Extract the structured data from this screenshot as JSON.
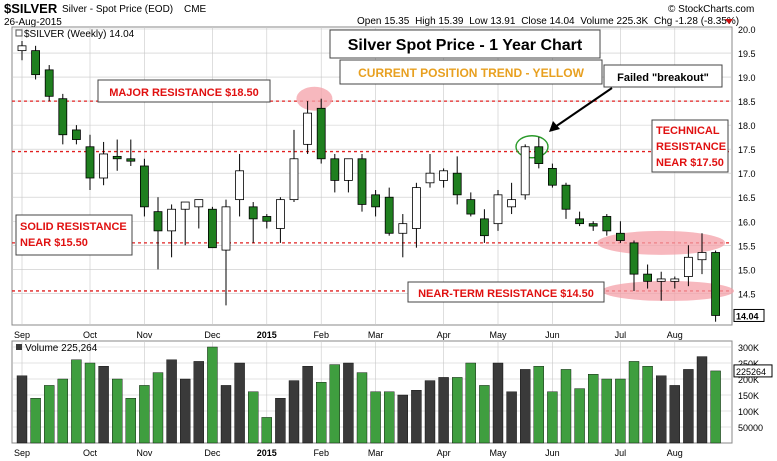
{
  "header": {
    "symbol": "$SILVER",
    "name": "Silver - Spot Price (EOD)",
    "exchange": "CME",
    "date": "26-Aug-2015",
    "copyright": "© StockCharts.com",
    "open_label": "Open",
    "open": "15.35",
    "high_label": "High",
    "high": "15.39",
    "low_label": "Low",
    "low": "13.91",
    "close_label": "Close",
    "close": "14.04",
    "volume_label": "Volume",
    "volume": "225.3K",
    "chg_label": "Chg",
    "chg": "-1.28 (-8.35%)"
  },
  "colors": {
    "up": "#ffffff",
    "down": "#1f7f1f",
    "up_volume": "#3a3a3a",
    "down_volume": "#3f9e3f",
    "resistance_line": "#e02020",
    "annotation_text": "#e01010",
    "highlight": "#f4a0a8",
    "yellow_title": "#e8a020",
    "grid": "#c8c8c8"
  },
  "chart_data": {
    "type": "candlestick",
    "series_label": "$SILVER (Weekly) 14.04",
    "title": "Silver Spot Price - 1 Year Chart",
    "subtitle": "CURRENT POSITION TREND - YELLOW",
    "price_axis": {
      "range": [
        13.8,
        20.0
      ],
      "ticks": [
        "20.0",
        "19.5",
        "19.0",
        "18.5",
        "18.0",
        "17.5",
        "17.0",
        "16.5",
        "16.0",
        "15.5",
        "15.0",
        "14.5"
      ],
      "last_value_label": "14.04"
    },
    "x_axis": {
      "labels": [
        {
          "label": "Sep",
          "week": 0
        },
        {
          "label": "Oct",
          "week": 5
        },
        {
          "label": "Nov",
          "week": 9
        },
        {
          "label": "Dec",
          "week": 14
        },
        {
          "label": "2015",
          "week": 18
        },
        {
          "label": "Feb",
          "week": 22
        },
        {
          "label": "Mar",
          "week": 26
        },
        {
          "label": "Apr",
          "week": 31
        },
        {
          "label": "May",
          "week": 35
        },
        {
          "label": "Jun",
          "week": 39
        },
        {
          "label": "Jul",
          "week": 44
        },
        {
          "label": "Aug",
          "week": 48
        }
      ]
    },
    "candles": [
      {
        "o": 19.55,
        "h": 19.75,
        "l": 19.35,
        "c": 19.65
      },
      {
        "o": 19.55,
        "h": 19.65,
        "l": 18.95,
        "c": 19.05
      },
      {
        "o": 19.15,
        "h": 19.25,
        "l": 18.5,
        "c": 18.6
      },
      {
        "o": 18.55,
        "h": 18.65,
        "l": 17.6,
        "c": 17.8
      },
      {
        "o": 17.9,
        "h": 18.0,
        "l": 17.6,
        "c": 17.7
      },
      {
        "o": 17.55,
        "h": 17.8,
        "l": 16.65,
        "c": 16.9
      },
      {
        "o": 16.9,
        "h": 17.65,
        "l": 16.75,
        "c": 17.4
      },
      {
        "o": 17.35,
        "h": 17.7,
        "l": 17.05,
        "c": 17.3
      },
      {
        "o": 17.3,
        "h": 17.7,
        "l": 17.15,
        "c": 17.25
      },
      {
        "o": 17.15,
        "h": 17.3,
        "l": 16.1,
        "c": 16.3
      },
      {
        "o": 16.2,
        "h": 16.5,
        "l": 15.0,
        "c": 15.8
      },
      {
        "o": 15.8,
        "h": 16.35,
        "l": 15.25,
        "c": 16.25
      },
      {
        "o": 16.25,
        "h": 16.4,
        "l": 15.5,
        "c": 16.4
      },
      {
        "o": 16.3,
        "h": 16.45,
        "l": 15.85,
        "c": 16.45
      },
      {
        "o": 16.25,
        "h": 16.3,
        "l": 15.45,
        "c": 15.45
      },
      {
        "o": 15.4,
        "h": 16.45,
        "l": 14.25,
        "c": 16.3
      },
      {
        "o": 16.45,
        "h": 17.4,
        "l": 16.1,
        "c": 17.05
      },
      {
        "o": 16.3,
        "h": 16.4,
        "l": 15.55,
        "c": 16.05
      },
      {
        "o": 16.1,
        "h": 16.15,
        "l": 15.85,
        "c": 16.0
      },
      {
        "o": 15.85,
        "h": 16.5,
        "l": 15.55,
        "c": 16.45
      },
      {
        "o": 16.45,
        "h": 17.9,
        "l": 16.4,
        "c": 17.3
      },
      {
        "o": 17.6,
        "h": 18.5,
        "l": 17.4,
        "c": 18.25
      },
      {
        "o": 18.35,
        "h": 18.55,
        "l": 17.2,
        "c": 17.3
      },
      {
        "o": 17.3,
        "h": 17.4,
        "l": 16.6,
        "c": 16.85
      },
      {
        "o": 16.85,
        "h": 17.3,
        "l": 16.6,
        "c": 17.3
      },
      {
        "o": 17.3,
        "h": 17.4,
        "l": 16.2,
        "c": 16.35
      },
      {
        "o": 16.55,
        "h": 16.65,
        "l": 16.1,
        "c": 16.3
      },
      {
        "o": 16.5,
        "h": 16.7,
        "l": 15.7,
        "c": 15.75
      },
      {
        "o": 15.75,
        "h": 16.15,
        "l": 15.25,
        "c": 15.95
      },
      {
        "o": 15.85,
        "h": 16.8,
        "l": 15.45,
        "c": 16.7
      },
      {
        "o": 16.8,
        "h": 17.4,
        "l": 16.7,
        "c": 17.0
      },
      {
        "o": 16.85,
        "h": 17.1,
        "l": 16.7,
        "c": 17.05
      },
      {
        "o": 17.0,
        "h": 17.35,
        "l": 16.35,
        "c": 16.55
      },
      {
        "o": 16.45,
        "h": 16.6,
        "l": 16.1,
        "c": 16.15
      },
      {
        "o": 16.05,
        "h": 16.25,
        "l": 15.55,
        "c": 15.7
      },
      {
        "o": 15.95,
        "h": 16.65,
        "l": 15.8,
        "c": 16.55
      },
      {
        "o": 16.3,
        "h": 16.8,
        "l": 16.15,
        "c": 16.45
      },
      {
        "o": 16.55,
        "h": 17.6,
        "l": 16.45,
        "c": 17.55
      },
      {
        "o": 17.55,
        "h": 17.75,
        "l": 17.1,
        "c": 17.2
      },
      {
        "o": 17.1,
        "h": 17.2,
        "l": 16.7,
        "c": 16.75
      },
      {
        "o": 16.75,
        "h": 16.8,
        "l": 16.05,
        "c": 16.25
      },
      {
        "o": 16.05,
        "h": 16.2,
        "l": 15.9,
        "c": 15.95
      },
      {
        "o": 15.95,
        "h": 16.0,
        "l": 15.8,
        "c": 15.9
      },
      {
        "o": 16.1,
        "h": 16.15,
        "l": 15.7,
        "c": 15.8
      },
      {
        "o": 15.75,
        "h": 16.0,
        "l": 15.55,
        "c": 15.6
      },
      {
        "o": 15.55,
        "h": 15.6,
        "l": 14.55,
        "c": 14.9
      },
      {
        "o": 14.9,
        "h": 15.1,
        "l": 14.6,
        "c": 14.75
      },
      {
        "o": 14.75,
        "h": 14.95,
        "l": 14.35,
        "c": 14.8
      },
      {
        "o": 14.75,
        "h": 14.85,
        "l": 14.6,
        "c": 14.8
      },
      {
        "o": 14.85,
        "h": 15.5,
        "l": 14.65,
        "c": 15.25
      },
      {
        "o": 15.2,
        "h": 15.75,
        "l": 14.9,
        "c": 15.35
      },
      {
        "o": 15.35,
        "h": 15.39,
        "l": 13.91,
        "c": 14.04
      }
    ],
    "resistance_lines": [
      {
        "value": 18.5,
        "label": "MAJOR RESISTANCE $18.50"
      },
      {
        "value": 17.45,
        "label": "TECHNICAL RESISTANCE NEAR $17.50"
      },
      {
        "value": 15.55,
        "label": "SOLID RESISTANCE NEAR $15.50"
      },
      {
        "value": 14.55,
        "label": "NEAR-TERM RESISTANCE $14.50"
      }
    ],
    "annotations": {
      "failed_breakout": "Failed \"breakout\"",
      "major": "MAJOR RESISTANCE $18.50",
      "technical_1": "TECHNICAL",
      "technical_2": "RESISTANCE",
      "technical_3": "NEAR $17.50",
      "solid_1": "SOLID RESISTANCE",
      "solid_2": "NEAR $15.50",
      "nearterm": "NEAR-TERM RESISTANCE $14.50"
    },
    "volume": {
      "label": "Volume",
      "value": "225,264",
      "range": [
        0,
        300000
      ],
      "ticks": [
        {
          "label": "300K",
          "v": 300000
        },
        {
          "label": "250K",
          "v": 250000
        },
        {
          "label": "200K",
          "v": 200000
        },
        {
          "label": "150K",
          "v": 150000
        },
        {
          "label": "100K",
          "v": 100000
        },
        {
          "label": "50000",
          "v": 50000
        }
      ],
      "last_value_label": "225264",
      "values": [
        210000,
        140000,
        180000,
        200000,
        260000,
        250000,
        240000,
        200000,
        140000,
        180000,
        220000,
        260000,
        200000,
        255000,
        300000,
        180000,
        250000,
        160000,
        80000,
        140000,
        195000,
        240000,
        190000,
        245000,
        250000,
        220000,
        160000,
        160000,
        150000,
        165000,
        195000,
        205000,
        205000,
        250000,
        180000,
        250000,
        160000,
        230000,
        240000,
        160000,
        230000,
        170000,
        215000,
        200000,
        200000,
        255000,
        240000,
        210000,
        180000,
        230000,
        270000,
        225264
      ]
    }
  }
}
